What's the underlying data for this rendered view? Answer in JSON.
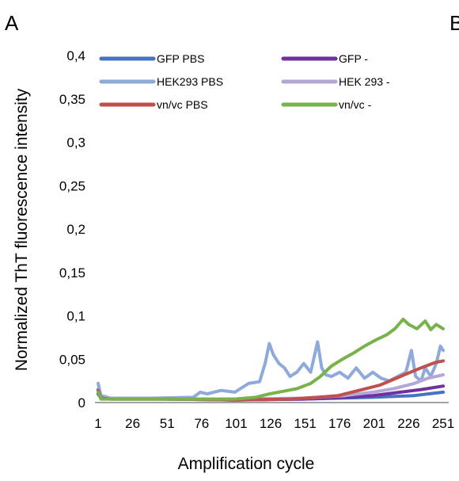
{
  "chart_data": {
    "type": "line",
    "panel_labels": [
      "A",
      "B"
    ],
    "xlabel": "Amplification cycle",
    "ylabel": "Normalized ThT fluorescence intensity",
    "ylim": [
      0,
      0.4
    ],
    "xlim": [
      1,
      251
    ],
    "y_ticks": [
      "0",
      "0,05",
      "0,1",
      "0,15",
      "0,2",
      "0,25",
      "0,3",
      "0,35",
      "0,4"
    ],
    "x_ticks": [
      "1",
      "26",
      "51",
      "76",
      "101",
      "126",
      "151",
      "176",
      "201",
      "226",
      "251"
    ],
    "legend_position": "top",
    "grid": false,
    "series": [
      {
        "name": "GFP PBS",
        "color": "#4472c4",
        "points": [
          [
            1,
            0.015
          ],
          [
            3,
            0.006
          ],
          [
            10,
            0.005
          ],
          [
            50,
            0.004
          ],
          [
            100,
            0.003
          ],
          [
            150,
            0.004
          ],
          [
            200,
            0.006
          ],
          [
            230,
            0.008
          ],
          [
            251,
            0.012
          ]
        ]
      },
      {
        "name": "GFP -",
        "color": "#7030a0",
        "points": [
          [
            1,
            0.01
          ],
          [
            3,
            0.005
          ],
          [
            10,
            0.004
          ],
          [
            50,
            0.004
          ],
          [
            100,
            0.003
          ],
          [
            150,
            0.004
          ],
          [
            180,
            0.006
          ],
          [
            200,
            0.008
          ],
          [
            220,
            0.012
          ],
          [
            235,
            0.015
          ],
          [
            251,
            0.019
          ]
        ]
      },
      {
        "name": "HEK293 PBS",
        "color": "#8eaadb",
        "points": [
          [
            1,
            0.022
          ],
          [
            3,
            0.008
          ],
          [
            10,
            0.005
          ],
          [
            40,
            0.005
          ],
          [
            70,
            0.006
          ],
          [
            75,
            0.012
          ],
          [
            80,
            0.01
          ],
          [
            90,
            0.014
          ],
          [
            100,
            0.012
          ],
          [
            110,
            0.022
          ],
          [
            118,
            0.024
          ],
          [
            122,
            0.045
          ],
          [
            125,
            0.068
          ],
          [
            128,
            0.055
          ],
          [
            132,
            0.045
          ],
          [
            136,
            0.04
          ],
          [
            140,
            0.03
          ],
          [
            145,
            0.035
          ],
          [
            150,
            0.045
          ],
          [
            155,
            0.035
          ],
          [
            160,
            0.07
          ],
          [
            163,
            0.04
          ],
          [
            166,
            0.032
          ],
          [
            170,
            0.03
          ],
          [
            176,
            0.035
          ],
          [
            182,
            0.028
          ],
          [
            188,
            0.04
          ],
          [
            194,
            0.028
          ],
          [
            200,
            0.035
          ],
          [
            206,
            0.028
          ],
          [
            212,
            0.025
          ],
          [
            218,
            0.03
          ],
          [
            224,
            0.035
          ],
          [
            228,
            0.06
          ],
          [
            231,
            0.03
          ],
          [
            235,
            0.025
          ],
          [
            238,
            0.04
          ],
          [
            242,
            0.03
          ],
          [
            246,
            0.045
          ],
          [
            249,
            0.065
          ],
          [
            251,
            0.06
          ]
        ]
      },
      {
        "name": "HEK 293 -",
        "color": "#b4a7d6",
        "points": [
          [
            1,
            0.012
          ],
          [
            3,
            0.005
          ],
          [
            10,
            0.005
          ],
          [
            60,
            0.004
          ],
          [
            100,
            0.004
          ],
          [
            150,
            0.005
          ],
          [
            180,
            0.008
          ],
          [
            200,
            0.012
          ],
          [
            215,
            0.016
          ],
          [
            230,
            0.022
          ],
          [
            240,
            0.028
          ],
          [
            251,
            0.032
          ]
        ]
      },
      {
        "name": "vn/vc PBS",
        "color": "#c0504d",
        "points": [
          [
            1,
            0.014
          ],
          [
            3,
            0.005
          ],
          [
            10,
            0.004
          ],
          [
            50,
            0.004
          ],
          [
            100,
            0.003
          ],
          [
            140,
            0.004
          ],
          [
            160,
            0.006
          ],
          [
            175,
            0.008
          ],
          [
            190,
            0.014
          ],
          [
            205,
            0.02
          ],
          [
            220,
            0.03
          ],
          [
            235,
            0.04
          ],
          [
            245,
            0.046
          ],
          [
            251,
            0.048
          ]
        ]
      },
      {
        "name": "vn/vc -",
        "color": "#77b34a",
        "points": [
          [
            1,
            0.012
          ],
          [
            3,
            0.004
          ],
          [
            10,
            0.004
          ],
          [
            60,
            0.004
          ],
          [
            100,
            0.004
          ],
          [
            115,
            0.006
          ],
          [
            125,
            0.01
          ],
          [
            135,
            0.013
          ],
          [
            145,
            0.016
          ],
          [
            155,
            0.022
          ],
          [
            162,
            0.03
          ],
          [
            170,
            0.042
          ],
          [
            178,
            0.05
          ],
          [
            186,
            0.057
          ],
          [
            194,
            0.065
          ],
          [
            202,
            0.072
          ],
          [
            210,
            0.078
          ],
          [
            216,
            0.085
          ],
          [
            222,
            0.096
          ],
          [
            226,
            0.09
          ],
          [
            232,
            0.085
          ],
          [
            238,
            0.094
          ],
          [
            242,
            0.084
          ],
          [
            246,
            0.09
          ],
          [
            251,
            0.085
          ]
        ]
      }
    ]
  }
}
